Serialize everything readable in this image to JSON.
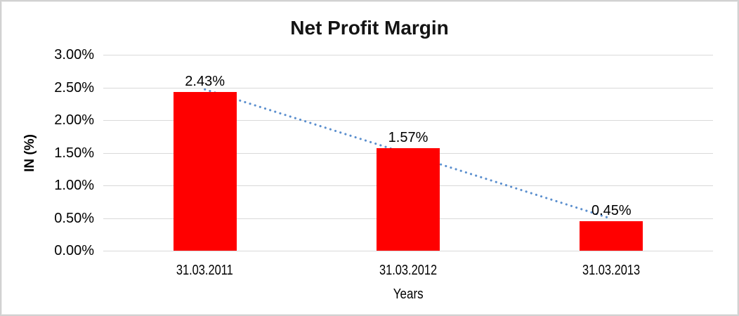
{
  "chart_data": {
    "type": "bar",
    "title": "Net Profit Margin",
    "xlabel": "Years",
    "ylabel": "IN (%)",
    "categories": [
      "31.03.2011",
      "31.03.2012",
      "31.03.2013"
    ],
    "values": [
      2.43,
      1.57,
      0.45
    ],
    "data_labels": [
      "2.43%",
      "1.57%",
      "0.45%"
    ],
    "ylim": [
      0,
      3
    ],
    "ytick_step": 0.5,
    "ytick_labels": [
      "0.00%",
      "0.50%",
      "1.00%",
      "1.50%",
      "2.00%",
      "2.50%",
      "3.00%"
    ],
    "grid": true,
    "legend": "none",
    "colors": {
      "bar": "#ff0000",
      "trendline": "#5b8fce",
      "gridline": "#d9d9d9",
      "text": "#000000",
      "frame": "#d2d2d2"
    },
    "trendline": {
      "type": "linear",
      "style": "dotted",
      "start_value": 2.47,
      "end_value": 0.49
    }
  }
}
